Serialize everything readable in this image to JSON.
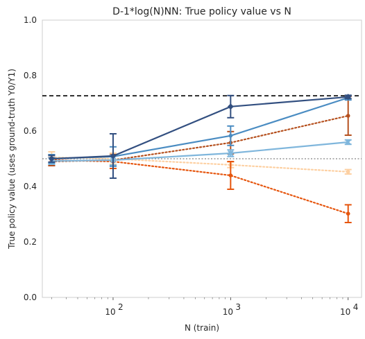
{
  "chart_data": {
    "type": "line",
    "title": "D-1*log(N)NN: True policy value vs N",
    "xlabel": "N (train)",
    "ylabel": "True policy value (uses ground-truth Y0/Y1)",
    "x_scale": "log",
    "xlim": [
      25,
      13000
    ],
    "ylim": [
      0,
      1.0
    ],
    "yticks": [
      0.0,
      0.2,
      0.4,
      0.6,
      0.8,
      1.0
    ],
    "ytick_labels": [
      "0.0",
      "0.2",
      "0.4",
      "0.6",
      "0.8",
      "1.0"
    ],
    "xticks": [
      100,
      1000,
      10000
    ],
    "xtick_labels": [
      {
        "base": "10",
        "exp": "2"
      },
      {
        "base": "10",
        "exp": "3"
      },
      {
        "base": "10",
        "exp": "4"
      }
    ],
    "grid": false,
    "x": [
      30,
      100,
      1000,
      10000
    ],
    "reference_lines": [
      {
        "y": 0.727,
        "style": "dashed",
        "color": "#000000"
      },
      {
        "y": 0.5,
        "style": "dotted",
        "color": "#808080"
      }
    ],
    "series": [
      {
        "color": "#fdd0a2",
        "style": "dotted",
        "marker": "circle",
        "values": [
          0.505,
          0.5,
          0.478,
          0.453
        ],
        "err": [
          0.02,
          0.02,
          0.01,
          0.008
        ]
      },
      {
        "color": "#e6550d",
        "style": "dotted",
        "marker": "circle",
        "values": [
          0.495,
          0.49,
          0.44,
          0.302
        ],
        "err": [
          0.02,
          0.025,
          0.05,
          0.032
        ]
      },
      {
        "color": "#b5501e",
        "style": "dotted",
        "marker": "circle",
        "values": [
          0.49,
          0.495,
          0.558,
          0.655
        ],
        "err": [
          0.015,
          0.02,
          0.04,
          0.07
        ]
      },
      {
        "color": "#7fb6dc",
        "style": "solid",
        "marker": "cross",
        "values": [
          0.492,
          0.495,
          0.52,
          0.56
        ],
        "err": [
          0.012,
          0.018,
          0.012,
          0.008
        ]
      },
      {
        "color": "#4a8cc2",
        "style": "solid",
        "marker": "circle",
        "values": [
          0.5,
          0.508,
          0.583,
          0.72
        ],
        "err": [
          0.015,
          0.035,
          0.035,
          0.008
        ]
      },
      {
        "color": "#324f80",
        "style": "solid",
        "marker": "diamond",
        "values": [
          0.5,
          0.51,
          0.688,
          0.723
        ],
        "err": [
          0.012,
          0.08,
          0.04,
          0.006
        ]
      }
    ]
  }
}
